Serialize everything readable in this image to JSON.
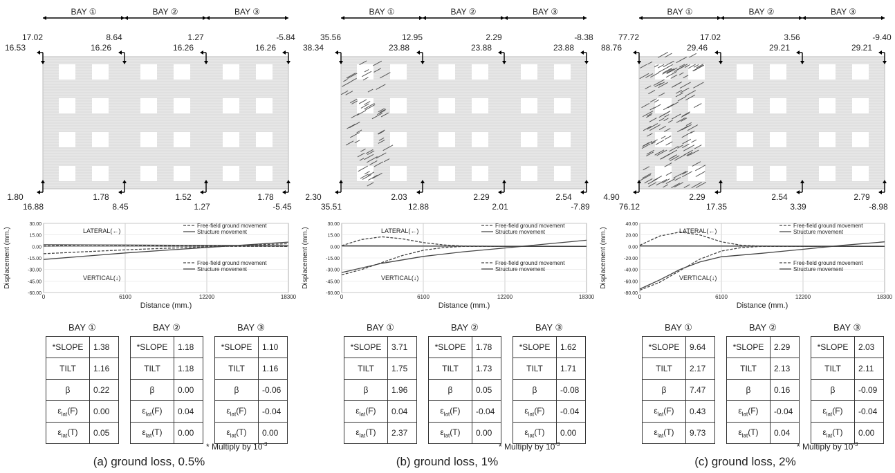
{
  "panels": [
    {
      "caption": "(a) ground loss, 0.5%",
      "bays": [
        "BAY ①",
        "BAY ②",
        "BAY ③"
      ],
      "wall_labels": {
        "top_outer": [
          "17.02",
          "8.64",
          "1.27",
          "-5.84"
        ],
        "top_inner": [
          "16.53",
          "16.26",
          "16.26",
          "16.26"
        ],
        "bottom_outer": [
          "1.80",
          "1.78",
          "1.52",
          "1.78"
        ],
        "bottom_inner": [
          "16.88",
          "8.45",
          "1.27",
          "-5.45"
        ]
      },
      "damage": "none",
      "table": {
        "header": [
          "BAY ①",
          "BAY ②",
          "BAY ③"
        ],
        "rows": [
          {
            "label": "*SLOPE",
            "values": [
              "1.38",
              "1.18",
              "1.10"
            ]
          },
          {
            "label": "TILT",
            "values": [
              "1.16",
              "1.18",
              "1.16"
            ]
          },
          {
            "label": "β",
            "values": [
              "0.22",
              "0.00",
              "-0.06"
            ]
          },
          {
            "label_main": "ε",
            "label_sub": "lat",
            "label_tail": "(F)",
            "values": [
              "0.00",
              "0.04",
              "-0.04"
            ]
          },
          {
            "label_main": "ε",
            "label_sub": "lat",
            "label_tail": "(T)",
            "values": [
              "0.05",
              "0.00",
              "0.00"
            ]
          }
        ]
      },
      "note": {
        "text": "* Multiply  by 10",
        "sup": "-3"
      },
      "chart_data": {
        "type": "line",
        "ylabel": "Displacement (mm.)",
        "xlabel": "Distance (mm.)",
        "xticks": [
          "0",
          "6100",
          "12200",
          "18300"
        ],
        "xlim": [
          0,
          18300
        ],
        "yticks": [
          "30.00",
          "15.00",
          "0.00",
          "-15.00",
          "-30.00",
          "-45.00",
          "-60.00"
        ],
        "ylim": [
          -60,
          30
        ],
        "annotations": [
          "LATERAL(←)",
          "VERTICAL(↓)"
        ],
        "legend": [
          {
            "name": "Free-field ground movement",
            "style": "dashed"
          },
          {
            "name": "Structure movement",
            "style": "solid"
          }
        ],
        "series": [
          {
            "name": "Free-field ground movement",
            "group": "LATERAL",
            "style": "dashed",
            "x": [
              0,
              3000,
              6100,
              9000,
              12200,
              15000,
              18300
            ],
            "y": [
              0.5,
              1.5,
              1.2,
              0.6,
              0.2,
              0.1,
              0
            ]
          },
          {
            "name": "Structure movement",
            "group": "LATERAL",
            "style": "solid",
            "x": [
              0,
              6100,
              12200,
              18300
            ],
            "y": [
              2.2,
              1.8,
              1.4,
              1.1
            ]
          },
          {
            "name": "Free-field ground movement",
            "group": "VERTICAL",
            "style": "dashed",
            "x": [
              0,
              3000,
              6100,
              9000,
              12200,
              15000,
              18300
            ],
            "y": [
              -9.5,
              -7,
              -4.5,
              -2.5,
              -1,
              1.5,
              3.5
            ]
          },
          {
            "name": "Structure movement",
            "group": "VERTICAL",
            "style": "solid",
            "x": [
              0,
              6100,
              12200,
              18300
            ],
            "y": [
              -17,
              -8.5,
              -1.3,
              5.6
            ]
          }
        ]
      }
    },
    {
      "caption": "(b) ground loss, 1%",
      "bays": [
        "BAY ①",
        "BAY ②",
        "BAY ③"
      ],
      "wall_labels": {
        "top_outer": [
          "35.56",
          "12.95",
          "2.29",
          "-8.38"
        ],
        "top_inner": [
          "38.34",
          "23.88",
          "23.88",
          "23.88"
        ],
        "bottom_outer": [
          "2.30",
          "2.03",
          "2.29",
          "2.54"
        ],
        "bottom_inner": [
          "35.51",
          "12.88",
          "2.01",
          "-7.89"
        ]
      },
      "damage": "moderate",
      "table": {
        "header": [
          "BAY ①",
          "BAY ②",
          "BAY ③"
        ],
        "rows": [
          {
            "label": "*SLOPE",
            "values": [
              "3.71",
              "1.78",
              "1.62"
            ]
          },
          {
            "label": "TILT",
            "values": [
              "1.75",
              "1.73",
              "1.71"
            ]
          },
          {
            "label": "β",
            "values": [
              "1.96",
              "0.05",
              "-0.08"
            ]
          },
          {
            "label_main": "ε",
            "label_sub": "lat",
            "label_tail": "(F)",
            "values": [
              "0.04",
              "-0.04",
              "-0.04"
            ]
          },
          {
            "label_main": "ε",
            "label_sub": "lat",
            "label_tail": "(T)",
            "values": [
              "2.37",
              "0.00",
              "0.00"
            ]
          }
        ]
      },
      "note": {
        "text": "* Multiply  by 10",
        "sup": "-3"
      },
      "chart_data": {
        "type": "line",
        "ylabel": "Displacement (mm.)",
        "xlabel": "Distance (mm.)",
        "xticks": [
          "0",
          "6100",
          "12200",
          "18300"
        ],
        "xlim": [
          0,
          18300
        ],
        "yticks": [
          "30.00",
          "15.00",
          "0.00",
          "-15.00",
          "-30.00",
          "-45.00",
          "-60.00"
        ],
        "ylim": [
          -60,
          30
        ],
        "annotations": [
          "LATERAL(←)",
          "VERTICAL(↓)"
        ],
        "legend": [
          {
            "name": "Free-field ground movement",
            "style": "dashed"
          },
          {
            "name": "Structure movement",
            "style": "solid"
          }
        ],
        "series": [
          {
            "name": "Free-field ground movement",
            "group": "LATERAL",
            "style": "dashed",
            "x": [
              0,
              1500,
              3000,
              4500,
              6100,
              7600,
              9100,
              12200,
              18300
            ],
            "y": [
              1,
              9,
              12.5,
              10,
              5,
              2,
              0.5,
              0,
              0
            ]
          },
          {
            "name": "Structure movement",
            "group": "LATERAL",
            "style": "solid",
            "x": [
              0,
              6100,
              12200,
              18300
            ],
            "y": [
              0.8,
              0.6,
              0.3,
              0.2
            ]
          },
          {
            "name": "Free-field ground movement",
            "group": "VERTICAL",
            "style": "dashed",
            "x": [
              0,
              1500,
              3000,
              4500,
              6100,
              7600,
              9100,
              12200,
              15200,
              18300
            ],
            "y": [
              -37,
              -30,
              -21,
              -12,
              -5,
              -1.5,
              0,
              0,
              0,
              0
            ]
          },
          {
            "name": "Structure movement",
            "group": "VERTICAL",
            "style": "solid",
            "x": [
              0,
              3000,
              6100,
              9100,
              12200,
              15200,
              18300
            ],
            "y": [
              -34,
              -22,
              -13,
              -7,
              -2,
              3,
              8
            ]
          }
        ]
      }
    },
    {
      "caption": "(c) ground loss, 2%",
      "bays": [
        "BAY ①",
        "BAY ②",
        "BAY ③"
      ],
      "wall_labels": {
        "top_outer": [
          "77.72",
          "17.02",
          "3.56",
          "-9.40"
        ],
        "top_inner": [
          "88.76",
          "29.46",
          "29.21",
          "29.21"
        ],
        "bottom_outer": [
          "4.90",
          "2.29",
          "2.54",
          "2.79"
        ],
        "bottom_inner": [
          "76.12",
          "17.35",
          "3.39",
          "-8.98"
        ]
      },
      "damage": "severe",
      "table": {
        "header": [
          "BAY ①",
          "BAY ②",
          "BAY ③"
        ],
        "rows": [
          {
            "label": "*SLOPE",
            "values": [
              "9.64",
              "2.29",
              "2.03"
            ]
          },
          {
            "label": "TILT",
            "values": [
              "2.17",
              "2.13",
              "2.11"
            ]
          },
          {
            "label": "β",
            "values": [
              "7.47",
              "0.16",
              "-0.09"
            ]
          },
          {
            "label_main": "ε",
            "label_sub": "lat",
            "label_tail": "(F)",
            "values": [
              "0.43",
              "-0.04",
              "-0.04"
            ]
          },
          {
            "label_main": "ε",
            "label_sub": "lat",
            "label_tail": "(T)",
            "values": [
              "9.73",
              "0.04",
              "0.00"
            ]
          }
        ]
      },
      "note": {
        "text": "* Multiply  by 10",
        "sup": "-3"
      },
      "chart_data": {
        "type": "line",
        "ylabel": "Displacement (mm.)",
        "xlabel": "Distance (mm.)",
        "xticks": [
          "0",
          "6100",
          "12200",
          "18300"
        ],
        "xlim": [
          0,
          18300
        ],
        "yticks": [
          "40.00",
          "20.00",
          "0.00",
          "-20.00",
          "-40.00",
          "-60.00",
          "-80.00"
        ],
        "ylim": [
          -80,
          40
        ],
        "annotations": [
          "LATERAL(←)",
          "VERTICAL(↓)"
        ],
        "legend": [
          {
            "name": "Free-field ground movement",
            "style": "dashed"
          },
          {
            "name": "Structure movement",
            "style": "solid"
          }
        ],
        "series": [
          {
            "name": "Free-field ground movement",
            "group": "LATERAL",
            "style": "dashed",
            "x": [
              0,
              1500,
              3000,
              4500,
              6100,
              7600,
              9100,
              12200,
              18300
            ],
            "y": [
              2,
              18,
              25,
              20,
              8,
              2,
              0.5,
              0,
              0
            ]
          },
          {
            "name": "Structure movement",
            "group": "LATERAL",
            "style": "solid",
            "x": [
              0,
              6100,
              12200,
              18300
            ],
            "y": [
              1,
              0.8,
              0.5,
              0.3
            ]
          },
          {
            "name": "Free-field ground movement",
            "group": "VERTICAL",
            "style": "dashed",
            "x": [
              0,
              1500,
              3000,
              4500,
              6100,
              7600,
              9100,
              12200,
              15200,
              18300
            ],
            "y": [
              -76,
              -62,
              -42,
              -22,
              -8,
              -2,
              0,
              0,
              0,
              0
            ]
          },
          {
            "name": "Structure movement",
            "group": "VERTICAL",
            "style": "solid",
            "x": [
              0,
              1500,
              3000,
              4500,
              6100,
              9100,
              12200,
              15200,
              18300
            ],
            "y": [
              -74,
              -58,
              -40,
              -27,
              -18,
              -12,
              -5,
              2,
              8
            ]
          }
        ]
      }
    }
  ]
}
